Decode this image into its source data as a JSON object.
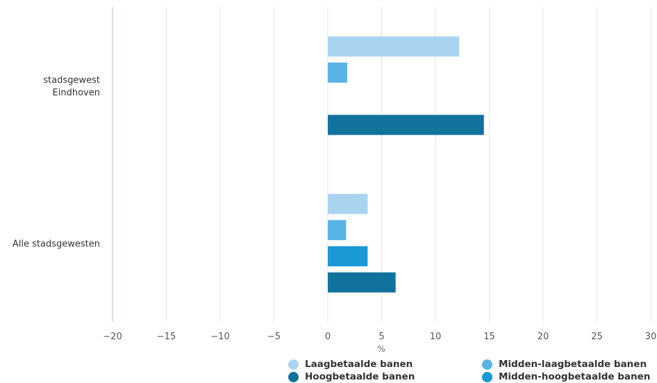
{
  "chart_data": {
    "type": "bar",
    "orientation": "horizontal",
    "categories": [
      [
        "stadsgewest",
        "Eindhoven"
      ],
      [
        "Alle stadsgewesten"
      ]
    ],
    "series": [
      {
        "name": "Laagbetaalde banen",
        "color": "#a9d4f0",
        "values": [
          12.2,
          3.7
        ]
      },
      {
        "name": "Midden-laagbetaalde banen",
        "color": "#59b3e6",
        "values": [
          1.8,
          1.7
        ]
      },
      {
        "name": "Midden-hoogbetaalde banen",
        "color": "#1a99d6",
        "values": [
          0,
          3.7
        ]
      },
      {
        "name": "Hoogbetaalde banen",
        "color": "#12729e",
        "values": [
          14.5,
          6.3
        ]
      }
    ],
    "xlabel": "%",
    "xlim": [
      -20,
      30
    ],
    "xticks": [
      -20,
      -15,
      -10,
      -5,
      0,
      5,
      10,
      15,
      20,
      25,
      30
    ],
    "xtick_labels": [
      "−20",
      "−15",
      "−10",
      "−5",
      "0",
      "5",
      "10",
      "15",
      "20",
      "25",
      "30"
    ],
    "grid": true,
    "legend_position": "bottom-right"
  }
}
